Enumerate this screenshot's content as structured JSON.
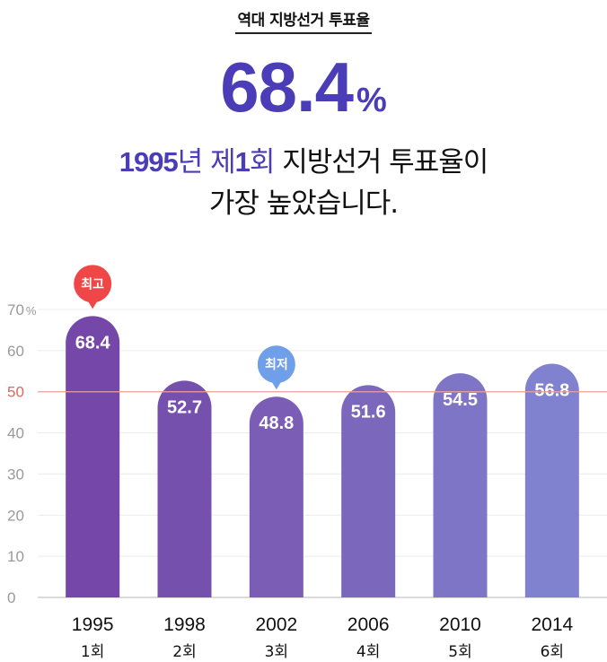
{
  "header": {
    "title": "역대 지방선거 투표율",
    "big_value": "68.4",
    "big_unit": "%",
    "headline_year": "1995",
    "headline_year_suffix": "년 제",
    "headline_round": "1",
    "headline_round_suffix": "회",
    "headline_rest_line1": " 지방선거 투표율이",
    "headline_line2": "가장 높았습니다."
  },
  "chart_data": {
    "type": "bar",
    "categories": [
      "1995",
      "1998",
      "2002",
      "2006",
      "2010",
      "2014"
    ],
    "sub_labels": [
      "1회",
      "2회",
      "3회",
      "4회",
      "5회",
      "6회"
    ],
    "values": [
      68.4,
      52.7,
      48.8,
      51.6,
      54.5,
      56.8
    ],
    "value_labels": [
      "68.4",
      "52.7",
      "48.8",
      "51.6",
      "54.5",
      "56.8"
    ],
    "ylim": [
      0,
      70
    ],
    "yticks": [
      "0",
      "10",
      "20",
      "30",
      "40",
      "50",
      "60",
      "70"
    ],
    "y_unit": "%",
    "reference_line": 50,
    "grid": true,
    "annotations": [
      {
        "category": "1995",
        "text": "최고",
        "color": "#ef4747"
      },
      {
        "category": "2002",
        "text": "최저",
        "color": "#6f9fe8"
      }
    ],
    "bar_colors": [
      "#7547a8",
      "#7550ad",
      "#7b5db6",
      "#7b68bd",
      "#7f75c6",
      "#8081cf"
    ],
    "reference_color": "#e9a29c"
  }
}
